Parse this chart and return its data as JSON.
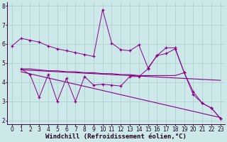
{
  "background_color": "#cce8e8",
  "grid_color": "#aacccc",
  "line_color": "#880088",
  "marker": "+",
  "xlabel": "Windchill (Refroidissement éolien,°C)",
  "xlabel_fontsize": 6.5,
  "tick_fontsize": 5.5,
  "xlim": [
    -0.5,
    23.5
  ],
  "ylim": [
    1.8,
    8.2
  ],
  "yticks": [
    2,
    3,
    4,
    5,
    6,
    7,
    8
  ],
  "xticks": [
    0,
    1,
    2,
    3,
    4,
    5,
    6,
    7,
    8,
    9,
    10,
    11,
    12,
    13,
    14,
    15,
    16,
    17,
    18,
    19,
    20,
    21,
    22,
    23
  ],
  "series1_x": [
    0,
    1,
    2,
    3,
    4,
    5,
    6,
    7,
    8,
    9,
    10,
    11,
    12,
    13,
    14,
    15,
    16,
    17,
    18,
    19,
    20,
    21,
    22,
    23
  ],
  "series1_y": [
    5.9,
    6.3,
    6.2,
    6.1,
    5.9,
    5.75,
    5.65,
    5.55,
    5.45,
    5.35,
    7.8,
    6.05,
    5.7,
    5.65,
    5.95,
    4.75,
    5.4,
    5.8,
    5.8,
    4.5,
    3.5,
    2.9,
    2.65,
    2.1
  ],
  "series2_x": [
    1,
    2,
    3,
    4,
    5,
    6,
    7,
    8,
    9,
    10,
    11,
    12,
    13,
    14,
    15,
    16,
    17,
    18,
    19
  ],
  "series2_y": [
    4.7,
    4.7,
    4.65,
    4.6,
    4.6,
    4.55,
    4.55,
    4.5,
    4.5,
    4.45,
    4.45,
    4.4,
    4.4,
    4.35,
    4.35,
    4.35,
    4.35,
    4.35,
    4.5
  ],
  "series3_x": [
    1,
    2,
    3,
    4,
    5,
    6,
    7,
    8,
    9,
    10,
    11,
    12,
    13,
    14,
    15,
    16,
    17,
    18,
    19,
    20,
    21,
    22,
    23
  ],
  "series3_y": [
    4.7,
    4.4,
    3.2,
    4.4,
    3.0,
    4.2,
    3.0,
    4.3,
    3.85,
    3.9,
    3.85,
    3.8,
    4.3,
    4.3,
    4.7,
    5.4,
    5.5,
    5.75,
    4.5,
    3.35,
    2.9,
    2.65,
    2.1
  ],
  "trendline1_x": [
    1,
    23
  ],
  "trendline1_y": [
    4.65,
    4.1
  ],
  "trendline2_x": [
    1,
    23
  ],
  "trendline2_y": [
    4.55,
    2.15
  ]
}
